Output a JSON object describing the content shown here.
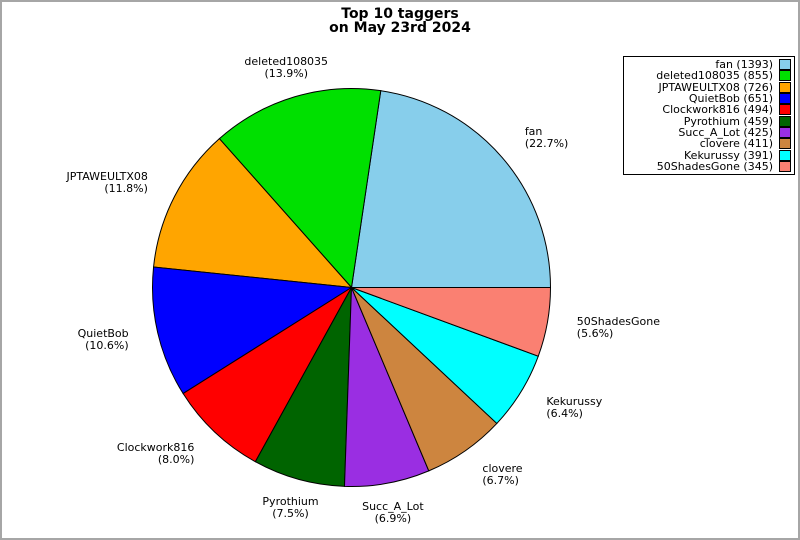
{
  "title": {
    "line1": "Top 10 taggers",
    "line2": "on May 23rd 2024"
  },
  "chart_data": {
    "type": "pie",
    "title": "Top 10 taggers on May 23rd 2024",
    "labels": [
      "fan",
      "deleted108035",
      "JPTAWEULTX08",
      "QuietBob",
      "Clockwork816",
      "Pyrothium",
      "Succ_A_Lot",
      "clovere",
      "Kekurussy",
      "50ShadesGone"
    ],
    "values": [
      1393,
      855,
      726,
      651,
      494,
      459,
      425,
      411,
      391,
      345
    ],
    "percent_labels": [
      "22.7",
      "13.9",
      "11.8",
      "10.6",
      "8.0",
      "7.5",
      "6.9",
      "6.7",
      "6.4",
      "5.6"
    ],
    "colors": [
      "#87CEEB",
      "#00E000",
      "#FFA500",
      "#0000FF",
      "#FF0000",
      "#006400",
      "#9A2EE2",
      "#CD853F",
      "#00FFFF",
      "#FA8072"
    ],
    "start_angle": 0,
    "direction": "counterclockwise",
    "legend_position": "upper right",
    "legend_entries": [
      "fan (1393)",
      "deleted108035 (855)",
      "JPTAWEULTX08 (726)",
      "QuietBob (651)",
      "Clockwork816 (494)",
      "Pyrothium (459)",
      "Succ_A_Lot (425)",
      "clovere (411)",
      "Kekurussy (391)",
      "50ShadesGone (345)"
    ]
  }
}
